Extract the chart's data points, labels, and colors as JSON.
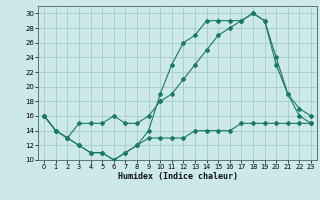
{
  "xlabel": "Humidex (Indice chaleur)",
  "bg_color": "#cce8e8",
  "grid_color": "#aacfcf",
  "line_color": "#1a7a6a",
  "xlim": [
    -0.5,
    23.5
  ],
  "ylim": [
    10,
    31
  ],
  "yticks": [
    10,
    12,
    14,
    16,
    18,
    20,
    22,
    24,
    26,
    28,
    30
  ],
  "xticks": [
    0,
    1,
    2,
    3,
    4,
    5,
    6,
    7,
    8,
    9,
    10,
    11,
    12,
    13,
    14,
    15,
    16,
    17,
    18,
    19,
    20,
    21,
    22,
    23
  ],
  "line1_x": [
    0,
    1,
    2,
    3,
    4,
    5,
    6,
    7,
    8,
    9,
    10,
    11,
    12,
    13,
    14,
    15,
    16,
    17,
    18,
    19,
    20,
    21,
    22,
    23
  ],
  "line1_y": [
    16,
    14,
    13,
    12,
    11,
    11,
    10,
    11,
    12,
    14,
    19,
    23,
    26,
    27,
    29,
    29,
    29,
    29,
    30,
    29,
    24,
    19,
    17,
    16
  ],
  "line2_x": [
    0,
    1,
    2,
    3,
    4,
    5,
    6,
    7,
    8,
    9,
    10,
    11,
    12,
    13,
    14,
    15,
    16,
    17,
    18,
    19,
    20,
    21,
    22,
    23
  ],
  "line2_y": [
    16,
    14,
    13,
    15,
    15,
    15,
    16,
    15,
    15,
    16,
    18,
    19,
    21,
    23,
    25,
    27,
    28,
    29,
    30,
    29,
    23,
    19,
    16,
    15
  ],
  "line3_x": [
    0,
    1,
    2,
    3,
    4,
    5,
    6,
    7,
    8,
    9,
    10,
    11,
    12,
    13,
    14,
    15,
    16,
    17,
    18,
    19,
    20,
    21,
    22,
    23
  ],
  "line3_y": [
    16,
    14,
    13,
    12,
    11,
    11,
    10,
    11,
    12,
    13,
    13,
    13,
    13,
    14,
    14,
    14,
    14,
    15,
    15,
    15,
    15,
    15,
    15,
    15
  ]
}
